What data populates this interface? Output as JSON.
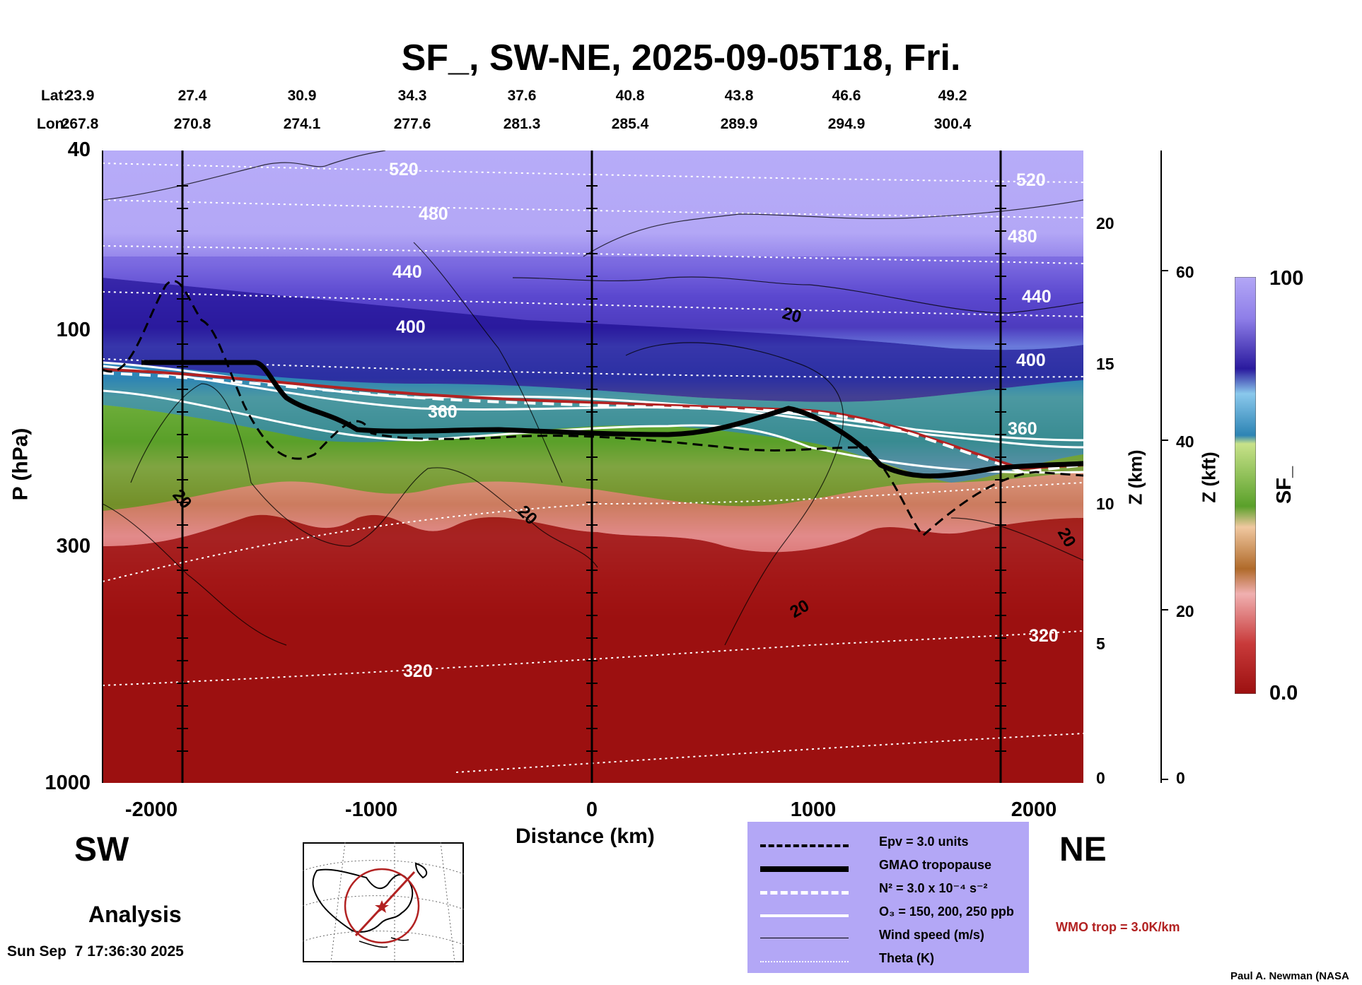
{
  "title": "SF_, SW-NE, 2025-09-05T18, Fri.",
  "lat_label": "Lat:",
  "lon_label": "Lon:",
  "lats": [
    "23.9",
    "27.4",
    "30.9",
    "34.3",
    "37.6",
    "40.8",
    "43.8",
    "46.6",
    "49.2"
  ],
  "lons": [
    "267.8",
    "270.8",
    "274.1",
    "277.6",
    "281.3",
    "285.4",
    "289.9",
    "294.9",
    "300.4"
  ],
  "ylabel": "P (hPa)",
  "yticks": [
    "40",
    "100",
    "300",
    "1000"
  ],
  "xlabel": "Distance (km)",
  "xticks": [
    "-2000",
    "-1000",
    "0",
    "1000",
    "2000"
  ],
  "zkm_label": "Z (km)",
  "zkm_ticks": [
    "20",
    "15",
    "10",
    "5",
    "0"
  ],
  "zkft_label": "Z (kft)",
  "zkft_ticks": [
    "60",
    "40",
    "20",
    "0"
  ],
  "colorbar": {
    "label": "SF_",
    "max": "100",
    "min": "0.0"
  },
  "left_label": "SW",
  "right_label": "NE",
  "analysis_label": "Analysis",
  "timestamp": "Sun Sep  7 17:36:30 2025",
  "credit": "Paul A. Newman (NASA",
  "wmo_text": "WMO trop = 3.0K/km",
  "legend": [
    {
      "label": "Epv = 3.0 units",
      "style": "black-dashed"
    },
    {
      "label": "GMAO tropopause",
      "style": "black-thick"
    },
    {
      "label": "N² = 3.0 x 10⁻⁴ s⁻²",
      "style": "white-dashed"
    },
    {
      "label": "O₃ = 150, 200, 250 ppb",
      "style": "white-solid"
    },
    {
      "label": "Wind speed (m/s)",
      "style": "black-thin"
    },
    {
      "label": "Theta (K)",
      "style": "white-dotted"
    }
  ],
  "contour_labels": {
    "theta": [
      "520",
      "480",
      "440",
      "400",
      "360",
      "320"
    ],
    "wind": [
      "20"
    ]
  },
  "colors": {
    "high": "#b3a7f6",
    "dark_blue": "#2a1a9e",
    "teal": "#2d84b4",
    "green": "#5aa02a",
    "brown": "#b06a2a",
    "pink": "#e28a8a",
    "low": "#9c1010",
    "wmo": "#b22222"
  },
  "chart_data": {
    "type": "heatmap",
    "title": "SF_, SW-NE, 2025-09-05T18, Fri.",
    "xlabel": "Distance (km)",
    "ylabel": "P (hPa)",
    "xlim": [
      -2200,
      2200
    ],
    "ylim": [
      1000,
      40
    ],
    "y_scale": "log",
    "colorbar_range": [
      0.0,
      100
    ],
    "theta_contours_K": [
      320,
      360,
      400,
      440,
      480,
      520
    ],
    "tropopause_gmao_hPa": {
      "x": [
        -2200,
        -1550,
        -1450,
        -1000,
        -500,
        0,
        500,
        1000,
        1150,
        1450,
        1600,
        2200
      ],
      "p": [
        125,
        125,
        150,
        178,
        180,
        182,
        184,
        178,
        160,
        195,
        215,
        210
      ]
    }
  }
}
